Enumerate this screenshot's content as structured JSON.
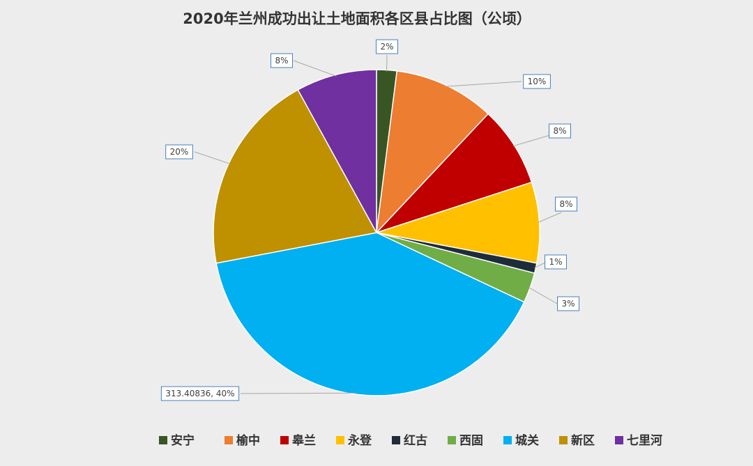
{
  "chart_data": {
    "type": "pie",
    "title": "2020年兰州成功出让土地面积各区县占比图（公顷）",
    "unit": "公顷",
    "slices": [
      {
        "name": "安宁",
        "percent": 2,
        "label": "2%",
        "color": "#375623"
      },
      {
        "name": "榆中",
        "percent": 10,
        "label": "10%",
        "color": "#ed7d31"
      },
      {
        "name": "皋兰",
        "percent": 8,
        "label": "8%",
        "color": "#c00000"
      },
      {
        "name": "永登",
        "percent": 8,
        "label": "8%",
        "color": "#ffc000"
      },
      {
        "name": "红古",
        "percent": 1,
        "label": "1%",
        "color": "#1f2d3a"
      },
      {
        "name": "西固",
        "percent": 3,
        "label": "3%",
        "color": "#70ad47"
      },
      {
        "name": "城关",
        "percent": 40,
        "value": 313.40836,
        "label": "313.40836, 40%",
        "color": "#00b0f0"
      },
      {
        "name": "新区",
        "percent": 20,
        "label": "20%",
        "color": "#bf9000"
      },
      {
        "name": "七里河",
        "percent": 8,
        "label": "8%",
        "color": "#7030a0"
      }
    ],
    "legend_position": "bottom"
  }
}
